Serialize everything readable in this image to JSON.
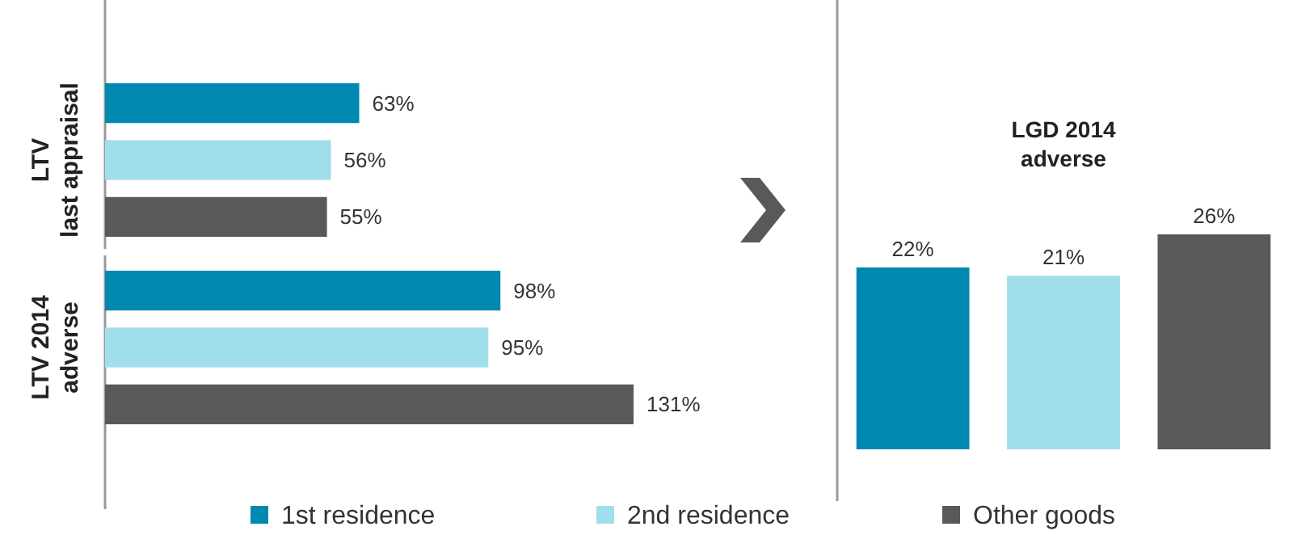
{
  "chart_data": [
    {
      "type": "bar",
      "orientation": "horizontal",
      "categories": [
        "LTV\nlast appraisal",
        "LTV 2014\nadverse"
      ],
      "legend": "bottom",
      "series": [
        {
          "name": "1st residence",
          "color": "#0089b0",
          "values": [
            63,
            98
          ],
          "value_labels": [
            "63%",
            "98%"
          ]
        },
        {
          "name": "2nd residence",
          "color": "#a0dfea",
          "values": [
            56,
            95
          ],
          "value_labels": [
            "56%",
            "95%"
          ]
        },
        {
          "name": "Other goods",
          "color": "#595959",
          "values": [
            55,
            131
          ],
          "value_labels": [
            "55%",
            "131%"
          ]
        }
      ]
    },
    {
      "type": "bar",
      "title": "LGD 2014\nadverse",
      "categories": [
        null,
        null,
        null
      ],
      "values": [
        22,
        21,
        26
      ],
      "colors": [
        "#0089b0",
        "#a0dfea",
        "#595959"
      ],
      "value_labels": [
        "22%",
        "21%",
        "26%"
      ]
    }
  ]
}
